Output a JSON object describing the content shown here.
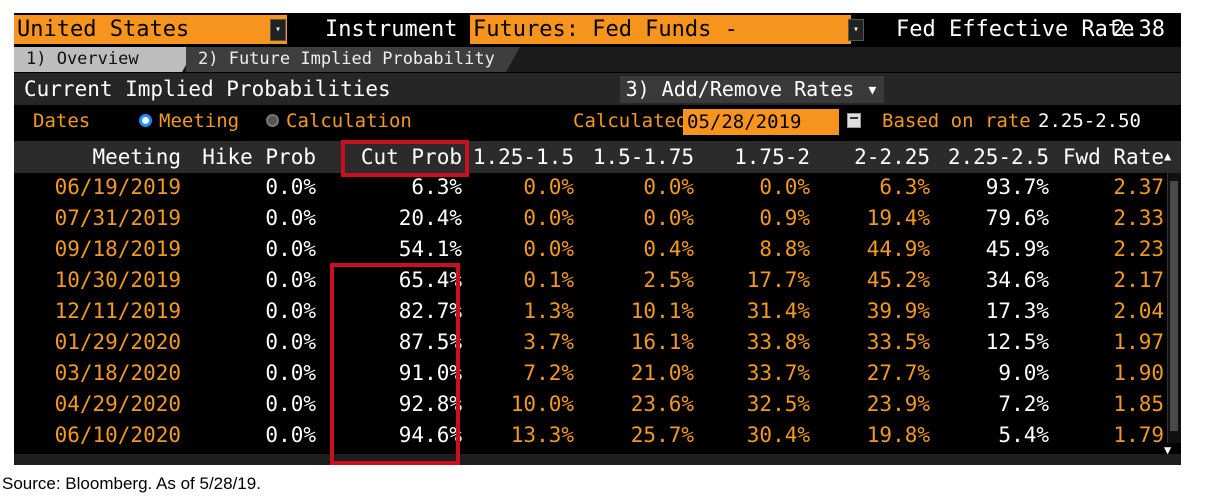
{
  "topbar": {
    "country": "United States",
    "instrument_label": "Instrument",
    "instrument": "Futures: Fed Funds - Effective",
    "rate_label": "Fed Effective Rate",
    "rate_value": "2.38",
    "dropdown_glyph": "▾"
  },
  "tabs": [
    {
      "label": "1) Overview"
    },
    {
      "label": "2) Future Implied Probability"
    }
  ],
  "section": {
    "title": "Current Implied Probabilities",
    "add_remove_label": "3) Add/Remove Rates ▾"
  },
  "controls": {
    "dates_label": "Dates",
    "meeting_label": "Meeting",
    "calculation_label": "Calculation",
    "calculated_label": "Calculated",
    "calculated_date": "05/28/2019",
    "based_on_label": "Based on rate",
    "based_on_value": "2.25-2.50"
  },
  "table": {
    "columns": [
      "Meeting",
      "Hike Prob",
      "Cut Prob",
      "1.25-1.5",
      "1.5-1.75",
      "1.75-2",
      "2-2.25",
      "2.25-2.5",
      "Fwd Rate"
    ],
    "rows": [
      [
        "06/19/2019",
        "0.0%",
        "6.3%",
        "0.0%",
        "0.0%",
        "0.0%",
        "6.3%",
        "93.7%",
        "2.37"
      ],
      [
        "07/31/2019",
        "0.0%",
        "20.4%",
        "0.0%",
        "0.0%",
        "0.9%",
        "19.4%",
        "79.6%",
        "2.33"
      ],
      [
        "09/18/2019",
        "0.0%",
        "54.1%",
        "0.0%",
        "0.4%",
        "8.8%",
        "44.9%",
        "45.9%",
        "2.23"
      ],
      [
        "10/30/2019",
        "0.0%",
        "65.4%",
        "0.1%",
        "2.5%",
        "17.7%",
        "45.2%",
        "34.6%",
        "2.17"
      ],
      [
        "12/11/2019",
        "0.0%",
        "82.7%",
        "1.3%",
        "10.1%",
        "31.4%",
        "39.9%",
        "17.3%",
        "2.04"
      ],
      [
        "01/29/2020",
        "0.0%",
        "87.5%",
        "3.7%",
        "16.1%",
        "33.8%",
        "33.5%",
        "12.5%",
        "1.97"
      ],
      [
        "03/18/2020",
        "0.0%",
        "91.0%",
        "7.2%",
        "21.0%",
        "33.7%",
        "27.7%",
        "9.0%",
        "1.90"
      ],
      [
        "04/29/2020",
        "0.0%",
        "92.8%",
        "10.0%",
        "23.6%",
        "32.5%",
        "23.9%",
        "7.2%",
        "1.85"
      ],
      [
        "06/10/2020",
        "0.0%",
        "94.6%",
        "13.3%",
        "25.7%",
        "30.4%",
        "19.8%",
        "5.4%",
        "1.79"
      ]
    ]
  },
  "scroll": {
    "up": "▲",
    "down": "▼"
  },
  "source_note": "Source: Bloomberg. As of 5/28/19."
}
